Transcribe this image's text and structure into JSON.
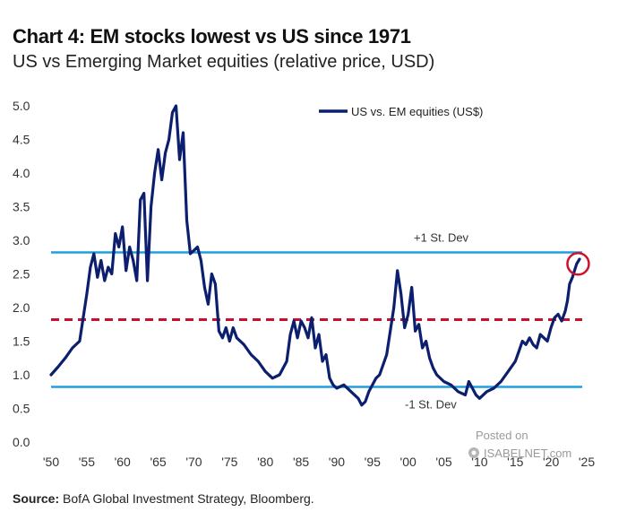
{
  "header": {
    "title": "Chart 4: EM stocks lowest vs US since 1971",
    "subtitle": "US vs Emerging Market equities (relative price, USD)"
  },
  "source": {
    "label": "Source:",
    "text": "BofA Global Investment Strategy, Bloomberg."
  },
  "watermark": {
    "posted": "Posted on",
    "site": "ISABELNET.com"
  },
  "colors": {
    "series": "#0c1f6e",
    "band": "#1e9fe0",
    "mean": "#c8102e",
    "highlight": "#d0112b"
  },
  "chart_data": {
    "type": "line",
    "title": "Chart 4: EM stocks lowest vs US since 1971",
    "subtitle": "US vs Emerging Market equities (relative price, USD)",
    "xlabel": "",
    "ylabel": "",
    "xlim": [
      1950,
      2025
    ],
    "ylim": [
      0.0,
      5.0
    ],
    "x_tick_values": [
      1950,
      1955,
      1960,
      1965,
      1970,
      1975,
      1980,
      1985,
      1990,
      1995,
      2000,
      2005,
      2010,
      2015,
      2020,
      2025
    ],
    "x_tick_labels": [
      "'50",
      "'55",
      "'60",
      "'65",
      "'70",
      "'75",
      "'80",
      "'85",
      "'90",
      "'95",
      "'00",
      "'05",
      "'10",
      "'15",
      "'20",
      "'25"
    ],
    "y_tick_values": [
      0.0,
      0.5,
      1.0,
      1.5,
      2.0,
      2.5,
      3.0,
      3.5,
      4.0,
      4.5,
      5.0
    ],
    "y_tick_labels": [
      "0.0",
      "0.5",
      "1.0",
      "1.5",
      "2.0",
      "2.5",
      "3.0",
      "3.5",
      "4.0",
      "4.5",
      "5.0"
    ],
    "legend": {
      "position": "top-right",
      "entries": [
        "US vs. EM equities (US$)"
      ]
    },
    "reference_lines": [
      {
        "name": "plus-one-sd",
        "label": "+1 St. Dev",
        "value": 2.82,
        "style": "solid"
      },
      {
        "name": "mean",
        "label": "",
        "value": 1.82,
        "style": "dashed"
      },
      {
        "name": "minus-one-sd",
        "label": "-1 St. Dev",
        "value": 0.82,
        "style": "solid"
      }
    ],
    "highlight": {
      "x": 2023.8,
      "y": 2.65,
      "shape": "circle"
    },
    "series": [
      {
        "name": "US vs. EM equities (US$)",
        "x": [
          1950.0,
          1951.0,
          1952.0,
          1953.0,
          1954.0,
          1955.0,
          1955.5,
          1956.0,
          1956.5,
          1957.0,
          1957.5,
          1958.0,
          1958.5,
          1959.0,
          1959.5,
          1960.0,
          1960.5,
          1961.0,
          1961.5,
          1962.0,
          1962.5,
          1963.0,
          1963.5,
          1964.0,
          1964.5,
          1965.0,
          1965.5,
          1966.0,
          1966.5,
          1967.0,
          1967.5,
          1968.0,
          1968.5,
          1969.0,
          1969.5,
          1970.0,
          1970.5,
          1971.0,
          1971.5,
          1972.0,
          1972.5,
          1973.0,
          1973.5,
          1974.0,
          1974.5,
          1975.0,
          1975.5,
          1976.0,
          1977.0,
          1978.0,
          1979.0,
          1980.0,
          1981.0,
          1982.0,
          1983.0,
          1983.5,
          1984.0,
          1984.5,
          1985.0,
          1985.5,
          1986.0,
          1986.5,
          1987.0,
          1987.5,
          1988.0,
          1988.5,
          1989.0,
          1989.5,
          1990.0,
          1991.0,
          1992.0,
          1993.0,
          1993.5,
          1994.0,
          1994.5,
          1995.0,
          1995.5,
          1996.0,
          1997.0,
          1998.0,
          1998.5,
          1999.0,
          1999.5,
          2000.0,
          2000.5,
          2001.0,
          2001.5,
          2002.0,
          2002.5,
          2003.0,
          2003.5,
          2004.0,
          2005.0,
          2006.0,
          2007.0,
          2008.0,
          2008.5,
          2009.0,
          2009.5,
          2010.0,
          2011.0,
          2012.0,
          2013.0,
          2014.0,
          2015.0,
          2015.5,
          2016.0,
          2016.5,
          2017.0,
          2017.5,
          2018.0,
          2018.5,
          2019.0,
          2019.5,
          2020.0,
          2020.5,
          2021.0,
          2021.5,
          2022.0,
          2022.3,
          2022.6,
          2023.0,
          2023.3,
          2023.6,
          2024.0
        ],
        "y": [
          1.0,
          1.12,
          1.25,
          1.4,
          1.5,
          2.2,
          2.6,
          2.8,
          2.45,
          2.7,
          2.4,
          2.6,
          2.5,
          3.1,
          2.9,
          3.2,
          2.55,
          2.9,
          2.7,
          2.4,
          3.6,
          3.7,
          2.4,
          3.5,
          4.0,
          4.35,
          3.9,
          4.3,
          4.5,
          4.9,
          5.0,
          4.2,
          4.6,
          3.3,
          2.8,
          2.85,
          2.9,
          2.7,
          2.3,
          2.05,
          2.5,
          2.35,
          1.65,
          1.55,
          1.7,
          1.5,
          1.7,
          1.55,
          1.45,
          1.3,
          1.2,
          1.05,
          0.95,
          1.0,
          1.2,
          1.6,
          1.8,
          1.55,
          1.8,
          1.7,
          1.55,
          1.85,
          1.4,
          1.6,
          1.2,
          1.3,
          0.95,
          0.85,
          0.8,
          0.85,
          0.75,
          0.65,
          0.55,
          0.6,
          0.75,
          0.85,
          0.95,
          1.0,
          1.3,
          2.0,
          2.55,
          2.2,
          1.7,
          1.9,
          2.3,
          1.65,
          1.75,
          1.4,
          1.5,
          1.25,
          1.1,
          1.0,
          0.9,
          0.85,
          0.75,
          0.7,
          0.9,
          0.8,
          0.7,
          0.65,
          0.75,
          0.8,
          0.9,
          1.05,
          1.2,
          1.35,
          1.5,
          1.45,
          1.55,
          1.45,
          1.4,
          1.6,
          1.55,
          1.5,
          1.7,
          1.85,
          1.9,
          1.8,
          1.95,
          2.1,
          2.35,
          2.45,
          2.55,
          2.65,
          2.72
        ]
      }
    ]
  }
}
